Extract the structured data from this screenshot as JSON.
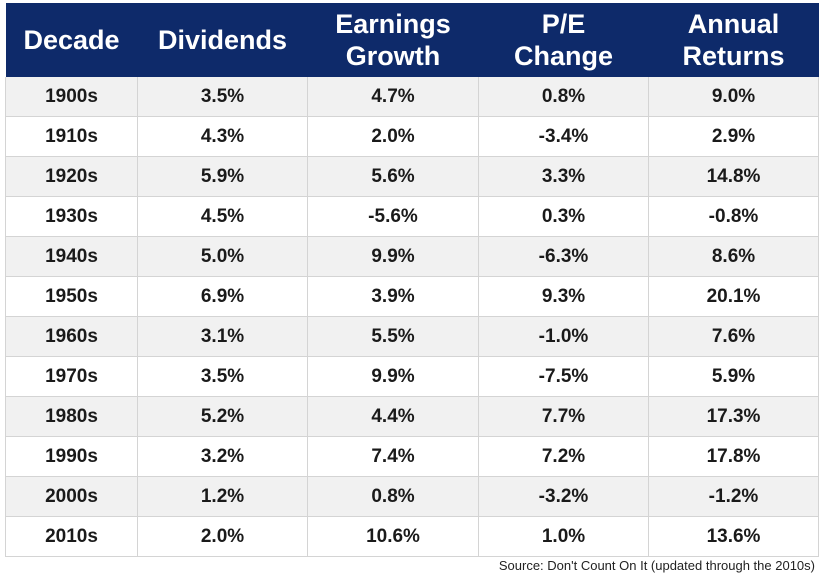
{
  "chart_data": {
    "type": "table",
    "columns": [
      "Decade",
      "Dividends",
      "Earnings\nGrowth",
      "P/E\nChange",
      "Annual\nReturns"
    ],
    "rows": [
      [
        "1900s",
        "3.5%",
        "4.7%",
        "0.8%",
        "9.0%"
      ],
      [
        "1910s",
        "4.3%",
        "2.0%",
        "-3.4%",
        "2.9%"
      ],
      [
        "1920s",
        "5.9%",
        "5.6%",
        "3.3%",
        "14.8%"
      ],
      [
        "1930s",
        "4.5%",
        "-5.6%",
        "0.3%",
        "-0.8%"
      ],
      [
        "1940s",
        "5.0%",
        "9.9%",
        "-6.3%",
        "8.6%"
      ],
      [
        "1950s",
        "6.9%",
        "3.9%",
        "9.3%",
        "20.1%"
      ],
      [
        "1960s",
        "3.1%",
        "5.5%",
        "-1.0%",
        "7.6%"
      ],
      [
        "1970s",
        "3.5%",
        "9.9%",
        "-7.5%",
        "5.9%"
      ],
      [
        "1980s",
        "5.2%",
        "4.4%",
        "7.7%",
        "17.3%"
      ],
      [
        "1990s",
        "3.2%",
        "7.4%",
        "7.2%",
        "17.8%"
      ],
      [
        "2000s",
        "1.2%",
        "0.8%",
        "-3.2%",
        "-1.2%"
      ],
      [
        "2010s",
        "2.0%",
        "10.6%",
        "1.0%",
        "13.6%"
      ]
    ],
    "source": "Source: Don't Count On It (updated through the 2010s)"
  },
  "colors": {
    "header_bg": "#0e2a6a",
    "header_text": "#ffffff",
    "row_alt_bg": "#f1f1f1"
  }
}
